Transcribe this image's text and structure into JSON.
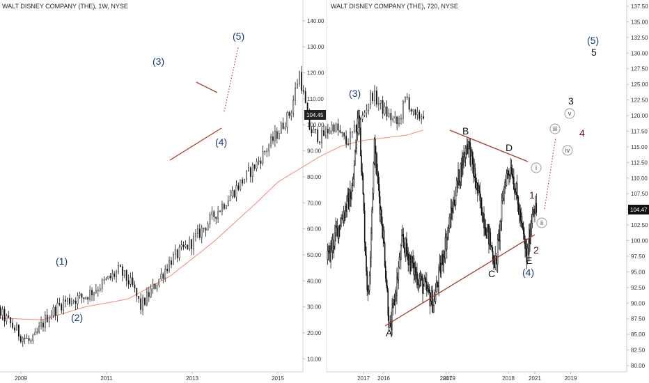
{
  "chart_data": [
    {
      "type": "candlestick",
      "title": "WALT DISNEY COMPANY (THE), 1W, NYSE",
      "x_ticks": [
        "2009",
        "2011",
        "2013",
        "2015",
        "2017",
        "2019",
        "2021"
      ],
      "y_ticks": [
        "10.00",
        "20.00",
        "30.00",
        "40.00",
        "50.00",
        "60.00",
        "70.00",
        "80.00",
        "90.00",
        "100.00",
        "110.00",
        "120.00",
        "130.00",
        "140.00"
      ],
      "ylim": [
        5,
        148
      ],
      "last_price": "104.45",
      "price_path": [
        [
          2008.0,
          30
        ],
        [
          2008.5,
          28
        ],
        [
          2009.0,
          19
        ],
        [
          2009.25,
          16
        ],
        [
          2009.6,
          26
        ],
        [
          2010.0,
          32
        ],
        [
          2010.5,
          34
        ],
        [
          2011.0,
          40
        ],
        [
          2011.3,
          44
        ],
        [
          2011.6,
          38
        ],
        [
          2011.8,
          30
        ],
        [
          2012.2,
          40
        ],
        [
          2012.5,
          48
        ],
        [
          2013.0,
          55
        ],
        [
          2013.5,
          65
        ],
        [
          2014.0,
          75
        ],
        [
          2014.5,
          85
        ],
        [
          2015.0,
          97
        ],
        [
          2015.3,
          105
        ],
        [
          2015.5,
          120
        ],
        [
          2015.75,
          98
        ],
        [
          2016.0,
          95
        ],
        [
          2016.3,
          100
        ],
        [
          2016.6,
          93
        ],
        [
          2016.9,
          100
        ],
        [
          2017.2,
          112
        ],
        [
          2017.5,
          105
        ],
        [
          2017.8,
          100
        ],
        [
          2018.0,
          111
        ],
        [
          2018.2,
          102
        ],
        [
          2018.4,
          104.45
        ]
      ],
      "ma_path": [
        [
          2008.0,
          26
        ],
        [
          2009.5,
          25
        ],
        [
          2010.5,
          30
        ],
        [
          2011.5,
          33
        ],
        [
          2012.5,
          42
        ],
        [
          2013.5,
          55
        ],
        [
          2014.5,
          70
        ],
        [
          2015.0,
          78
        ],
        [
          2015.5,
          83
        ],
        [
          2016.0,
          88
        ],
        [
          2016.5,
          92
        ],
        [
          2017.0,
          94
        ],
        [
          2017.5,
          95
        ],
        [
          2018.0,
          96
        ],
        [
          2018.4,
          98
        ]
      ],
      "annotations": [
        "(1)",
        "(2)",
        "(3)",
        "(4)",
        "(5)"
      ]
    },
    {
      "type": "candlestick",
      "title": "WALT DISNEY COMPANY (THE), 720, NYSE",
      "x_ticks": [
        "2016",
        "2017",
        "2018",
        "2019"
      ],
      "y_ticks": [
        "80.00",
        "82.50",
        "85.00",
        "87.50",
        "90.00",
        "92.50",
        "95.00",
        "97.50",
        "100.00",
        "102.50",
        "105.00",
        "107.50",
        "110.00",
        "112.50",
        "115.00",
        "117.50",
        "120.00",
        "122.50",
        "125.00",
        "127.50",
        "130.00",
        "132.50",
        "135.00",
        "137.50"
      ],
      "ylim": [
        79,
        138.5
      ],
      "last_price": "104.47",
      "price_path": [
        [
          2015.1,
          97
        ],
        [
          2015.3,
          103
        ],
        [
          2015.5,
          108
        ],
        [
          2015.6,
          122
        ],
        [
          2015.7,
          100
        ],
        [
          2015.75,
          90
        ],
        [
          2015.85,
          115
        ],
        [
          2016.0,
          100
        ],
        [
          2016.1,
          85
        ],
        [
          2016.3,
          100
        ],
        [
          2016.5,
          95
        ],
        [
          2016.8,
          90
        ],
        [
          2017.0,
          100
        ],
        [
          2017.2,
          110
        ],
        [
          2017.35,
          116
        ],
        [
          2017.5,
          108
        ],
        [
          2017.7,
          100
        ],
        [
          2017.8,
          96
        ],
        [
          2017.95,
          110
        ],
        [
          2018.05,
          112
        ],
        [
          2018.2,
          103
        ],
        [
          2018.3,
          97
        ],
        [
          2018.4,
          106
        ],
        [
          2018.45,
          104.47
        ]
      ],
      "annotations": [
        "(3)",
        "A",
        "B",
        "C",
        "D",
        "E",
        "(4)",
        "1",
        "2",
        "3",
        "4",
        "5",
        "(5)",
        "i",
        "ii",
        "iii",
        "iv",
        "v"
      ]
    }
  ]
}
